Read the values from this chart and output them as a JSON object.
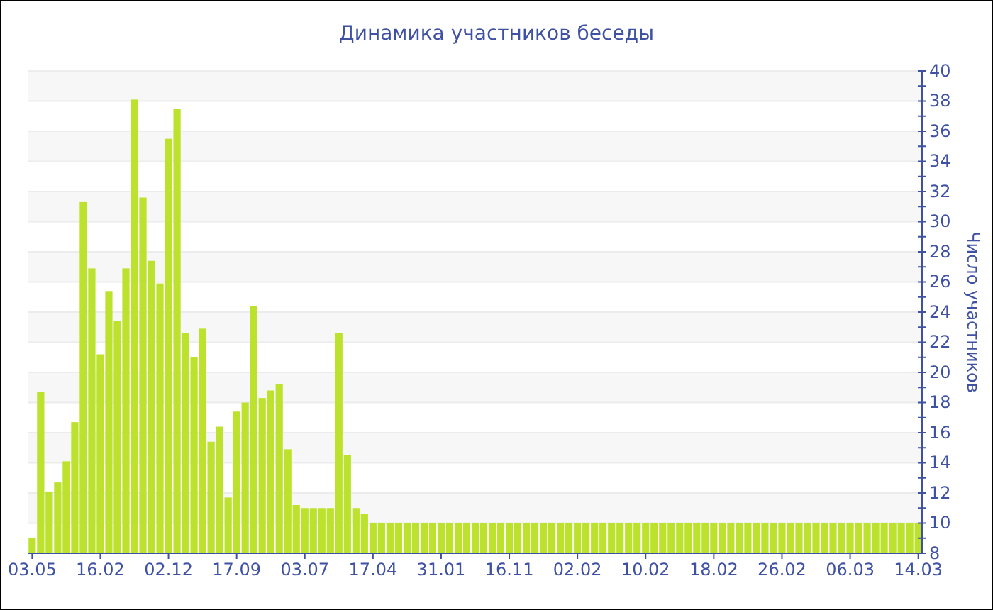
{
  "chart_data": {
    "type": "bar",
    "title": "Динамика участников беседы",
    "ylabel": "Число участников",
    "categories": [
      "03.05",
      null,
      null,
      null,
      null,
      null,
      null,
      null,
      "16.02",
      null,
      null,
      null,
      null,
      null,
      null,
      null,
      "02.12",
      null,
      null,
      null,
      null,
      null,
      null,
      null,
      "17.09",
      null,
      null,
      null,
      null,
      null,
      null,
      null,
      "03.07",
      null,
      null,
      null,
      null,
      null,
      null,
      null,
      "17.04",
      null,
      null,
      null,
      null,
      null,
      null,
      null,
      "31.01",
      null,
      null,
      null,
      null,
      null,
      null,
      null,
      "16.11",
      null,
      null,
      null,
      null,
      null,
      null,
      null,
      "02.02",
      null,
      null,
      null,
      null,
      null,
      null,
      null,
      "10.02",
      null,
      null,
      null,
      null,
      null,
      null,
      null,
      "18.02",
      null,
      null,
      null,
      null,
      null,
      null,
      null,
      "26.02",
      null,
      null,
      null,
      null,
      null,
      null,
      null,
      "06.03",
      null,
      null,
      null,
      null,
      null,
      null,
      null,
      "14.03"
    ],
    "values": [
      9,
      18.7,
      12.1,
      12.7,
      14.1,
      16.7,
      31.3,
      26.9,
      21.2,
      25.4,
      23.4,
      26.9,
      38.1,
      31.6,
      27.4,
      25.9,
      35.5,
      37.5,
      22.6,
      21.0,
      22.9,
      15.4,
      16.4,
      11.7,
      17.4,
      18.0,
      24.4,
      18.3,
      18.8,
      19.2,
      14.9,
      11.2,
      11,
      11,
      11,
      11,
      22.6,
      14.5,
      11,
      10.6,
      10,
      10,
      10,
      10,
      10,
      10,
      10,
      10,
      10,
      10,
      10,
      10,
      10,
      10,
      10,
      10,
      10,
      10,
      10,
      10,
      10,
      10,
      10,
      10,
      10,
      10,
      10,
      10,
      10,
      10,
      10,
      10,
      10,
      10,
      10,
      10,
      10,
      10,
      10,
      10,
      10,
      10,
      10,
      10,
      10,
      10,
      10,
      10,
      10,
      10,
      10,
      10,
      10,
      10,
      10,
      10,
      10,
      10,
      10,
      10,
      10,
      10,
      10,
      10,
      10
    ],
    "color": "#bde22e",
    "ylim": [
      8,
      40
    ],
    "yticks": [
      8,
      {
        "value": 9,
        "label": null
      },
      10,
      {
        "value": 11,
        "label": null
      },
      12,
      {
        "value": 13,
        "label": null
      },
      14,
      {
        "value": 15,
        "label": null
      },
      16,
      {
        "value": 17,
        "label": null
      },
      18,
      {
        "value": 19,
        "label": null
      },
      20,
      {
        "value": 21,
        "label": null
      },
      22,
      {
        "value": 23,
        "label": null
      },
      24,
      {
        "value": 25,
        "label": null
      },
      26,
      {
        "value": 27,
        "label": null
      },
      28,
      {
        "value": 29,
        "label": null
      },
      30,
      {
        "value": 31,
        "label": null
      },
      32,
      {
        "value": 33,
        "label": null
      },
      34,
      {
        "value": 35,
        "label": null
      },
      36,
      {
        "value": 37,
        "label": null
      },
      38,
      {
        "value": 39,
        "label": null
      },
      40
    ],
    "grid": "y"
  }
}
